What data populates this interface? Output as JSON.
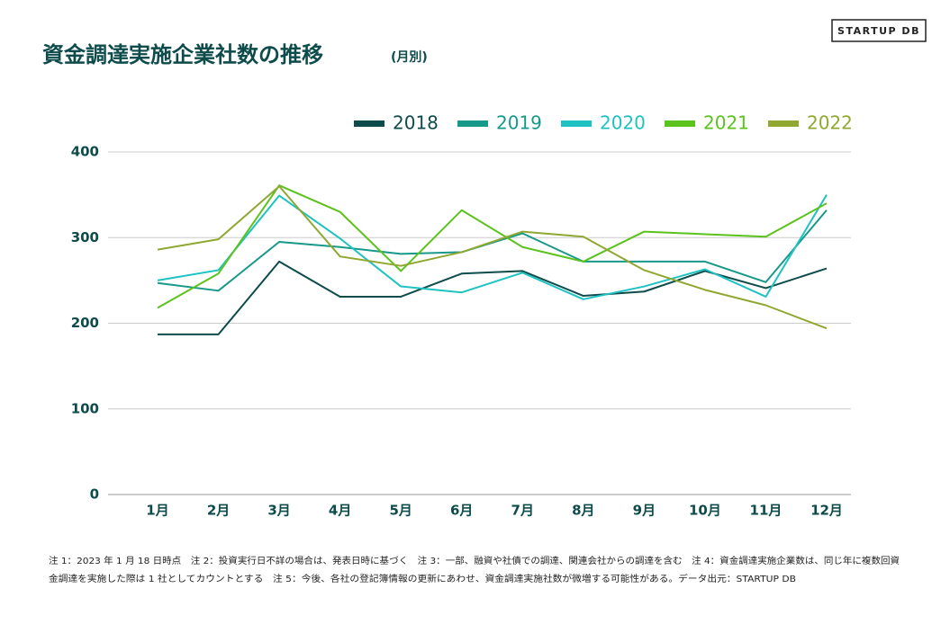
{
  "logo": "STARTUP DB",
  "footnotes": [
    "注 1：2023 年 1 月 18 日時点　注 2：投資実行日不詳の場合は、発表日時に基づく　注 3：一部、融資や社債での調達、関連会社からの調達を含む　注 4：資金調達実施企業数は、同じ年に複数回資",
    "金調達を実施した際は 1 社としてカウントとする　注 5：今後、各社の登記簿情報の更新にあわせ、資金調達実施社数が微増する可能性がある。データ出元：STARTUP DB"
  ],
  "chart_data": {
    "type": "line",
    "title": "資金調達実施企業社数の推移",
    "subtitle": "(月別)",
    "categories": [
      "1月",
      "2月",
      "3月",
      "4月",
      "5月",
      "6月",
      "7月",
      "8月",
      "9月",
      "10月",
      "11月",
      "12月"
    ],
    "series": [
      {
        "name": "2018",
        "color": "#0e4b4b",
        "values": [
          187,
          187,
          272,
          231,
          231,
          258,
          261,
          232,
          237,
          261,
          241,
          264
        ]
      },
      {
        "name": "2019",
        "color": "#17998a",
        "values": [
          247,
          238,
          295,
          289,
          281,
          283,
          305,
          272,
          272,
          272,
          248,
          332
        ]
      },
      {
        "name": "2020",
        "color": "#1ec2c2",
        "values": [
          250,
          262,
          349,
          299,
          243,
          236,
          259,
          228,
          243,
          263,
          231,
          350
        ]
      },
      {
        "name": "2021",
        "color": "#5cc21c",
        "values": [
          218,
          258,
          361,
          330,
          261,
          332,
          289,
          272,
          307,
          304,
          301,
          340
        ]
      },
      {
        "name": "2022",
        "color": "#90a832",
        "values": [
          286,
          298,
          360,
          278,
          267,
          283,
          307,
          301,
          262,
          239,
          221,
          194
        ]
      }
    ],
    "ylim": [
      0,
      400
    ],
    "yticks": [
      0,
      100,
      200,
      300,
      400
    ],
    "grid": true,
    "legend": "top"
  }
}
